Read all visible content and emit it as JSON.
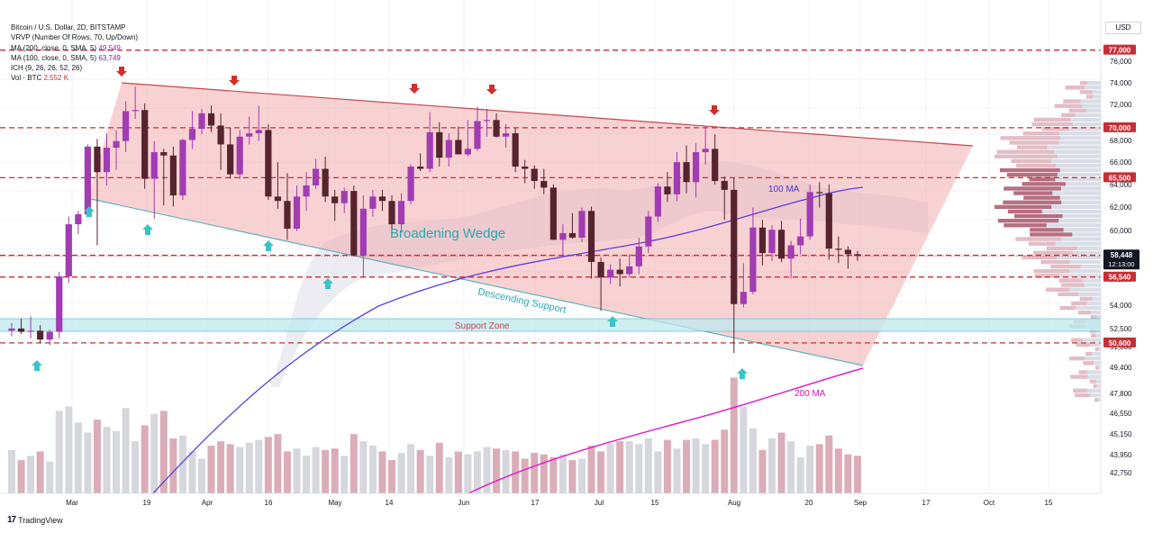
{
  "header": {
    "symbol": "Bitcoin / U.S. Dollar, 2D, BITSTAMP",
    "indicators": [
      {
        "name": "VRVP (Number Of Rows, 70, Up/Down)",
        "value": ""
      },
      {
        "name": "MA (200, close, 0, SMA, 5)",
        "value": "49,549"
      },
      {
        "name": "MA (100, close, 0, SMA, 5)",
        "value": "63,749"
      },
      {
        "name": "ICH (9, 26, 26, 52, 26)",
        "value": ""
      },
      {
        "name": "Vol · BTC",
        "value": "2.552 K"
      }
    ]
  },
  "currency": "USD",
  "branding": "TradingView",
  "chart_data": {
    "type": "candlestick",
    "y_axis_ticks": [
      "76,000",
      "74,000",
      "72,000",
      "70,000",
      "68,000",
      "66,000",
      "64,000",
      "62,000",
      "60,000",
      "58,000",
      "56,000",
      "54,000",
      "52,500",
      "51,000",
      "49,400",
      "47,800",
      "46,550",
      "45,150",
      "43,950",
      "42,750"
    ],
    "x_axis_ticks": [
      "Mar",
      "19",
      "Apr",
      "16",
      "May",
      "14",
      "Jun",
      "17",
      "Jul",
      "15",
      "Aug",
      "20",
      "Sep",
      "17",
      "Oct",
      "15"
    ],
    "price_levels": [
      {
        "label": "77,000",
        "price": 77000
      },
      {
        "label": "70,000",
        "price": 70000
      },
      {
        "label": "65,500",
        "price": 65500
      },
      {
        "label": "58,500",
        "price": 58500
      },
      {
        "label": "56,540",
        "price": 56540
      },
      {
        "label": "50,600",
        "price": 50600
      }
    ],
    "current_price": {
      "label": "58,448",
      "countdown": "12:13:00"
    },
    "annotations": {
      "pattern": "Broadening Wedge",
      "support_line": "Descending Support",
      "support_zone": "Support Zone",
      "ma100": "100 MA",
      "ma200": "200 MA"
    },
    "candles": [
      {
        "o": 51700,
        "h": 52400,
        "l": 51200,
        "c": 51900
      },
      {
        "o": 51900,
        "h": 52800,
        "l": 51400,
        "c": 51600
      },
      {
        "o": 51600,
        "h": 53000,
        "l": 51000,
        "c": 51700
      },
      {
        "o": 51700,
        "h": 52200,
        "l": 50600,
        "c": 50900
      },
      {
        "o": 50900,
        "h": 51800,
        "l": 50400,
        "c": 51600
      },
      {
        "o": 51600,
        "h": 57000,
        "l": 51000,
        "c": 56600
      },
      {
        "o": 56600,
        "h": 62000,
        "l": 56000,
        "c": 61300
      },
      {
        "o": 61300,
        "h": 62500,
        "l": 60400,
        "c": 62200
      },
      {
        "o": 62200,
        "h": 68500,
        "l": 62000,
        "c": 68300
      },
      {
        "o": 68300,
        "h": 69000,
        "l": 59400,
        "c": 66000
      },
      {
        "o": 66000,
        "h": 69500,
        "l": 64800,
        "c": 68200
      },
      {
        "o": 68200,
        "h": 69800,
        "l": 66200,
        "c": 68800
      },
      {
        "o": 68800,
        "h": 72400,
        "l": 67800,
        "c": 71500
      },
      {
        "o": 71500,
        "h": 73700,
        "l": 70800,
        "c": 71600
      },
      {
        "o": 71600,
        "h": 72200,
        "l": 64500,
        "c": 65400
      },
      {
        "o": 65400,
        "h": 68800,
        "l": 61800,
        "c": 67800
      },
      {
        "o": 67800,
        "h": 68100,
        "l": 63000,
        "c": 67500
      },
      {
        "o": 67500,
        "h": 68300,
        "l": 62900,
        "c": 63900
      },
      {
        "o": 63900,
        "h": 69000,
        "l": 63500,
        "c": 68900
      },
      {
        "o": 68900,
        "h": 71500,
        "l": 68100,
        "c": 69900
      },
      {
        "o": 69900,
        "h": 71700,
        "l": 69400,
        "c": 71300
      },
      {
        "o": 71300,
        "h": 72000,
        "l": 69600,
        "c": 70200
      },
      {
        "o": 70200,
        "h": 71300,
        "l": 66200,
        "c": 68500
      },
      {
        "o": 68500,
        "h": 70000,
        "l": 65400,
        "c": 65800
      },
      {
        "o": 65800,
        "h": 69800,
        "l": 65400,
        "c": 69200
      },
      {
        "o": 69200,
        "h": 71000,
        "l": 68500,
        "c": 69500
      },
      {
        "o": 69500,
        "h": 72000,
        "l": 68800,
        "c": 69800
      },
      {
        "o": 69800,
        "h": 70300,
        "l": 63500,
        "c": 63800
      },
      {
        "o": 63800,
        "h": 66900,
        "l": 62700,
        "c": 63400
      },
      {
        "o": 63400,
        "h": 65900,
        "l": 59900,
        "c": 60900
      },
      {
        "o": 60900,
        "h": 64800,
        "l": 60700,
        "c": 63800
      },
      {
        "o": 63800,
        "h": 66000,
        "l": 62500,
        "c": 64800
      },
      {
        "o": 64800,
        "h": 67200,
        "l": 64500,
        "c": 66300
      },
      {
        "o": 66300,
        "h": 67400,
        "l": 63300,
        "c": 63800
      },
      {
        "o": 63800,
        "h": 64400,
        "l": 61600,
        "c": 63200
      },
      {
        "o": 63200,
        "h": 64600,
        "l": 62300,
        "c": 64300
      },
      {
        "o": 64300,
        "h": 64800,
        "l": 58400,
        "c": 58500
      },
      {
        "o": 58500,
        "h": 63900,
        "l": 56600,
        "c": 62700
      },
      {
        "o": 62700,
        "h": 64400,
        "l": 62000,
        "c": 63800
      },
      {
        "o": 63800,
        "h": 64400,
        "l": 62500,
        "c": 63400
      },
      {
        "o": 63400,
        "h": 63900,
        "l": 60800,
        "c": 61300
      },
      {
        "o": 61300,
        "h": 64100,
        "l": 60600,
        "c": 63400
      },
      {
        "o": 63400,
        "h": 66700,
        "l": 63100,
        "c": 66500
      },
      {
        "o": 66500,
        "h": 67700,
        "l": 66100,
        "c": 66300
      },
      {
        "o": 66300,
        "h": 71400,
        "l": 66000,
        "c": 69600
      },
      {
        "o": 69600,
        "h": 70500,
        "l": 66500,
        "c": 67300
      },
      {
        "o": 67300,
        "h": 69500,
        "l": 66500,
        "c": 68900
      },
      {
        "o": 68900,
        "h": 70100,
        "l": 67800,
        "c": 67600
      },
      {
        "o": 67600,
        "h": 70700,
        "l": 67400,
        "c": 68100
      },
      {
        "o": 68100,
        "h": 71900,
        "l": 67900,
        "c": 70600
      },
      {
        "o": 70600,
        "h": 71700,
        "l": 69200,
        "c": 70700
      },
      {
        "o": 70700,
        "h": 71300,
        "l": 69100,
        "c": 69200
      },
      {
        "o": 69200,
        "h": 70300,
        "l": 68200,
        "c": 69500
      },
      {
        "o": 69500,
        "h": 70000,
        "l": 66000,
        "c": 66500
      },
      {
        "o": 66500,
        "h": 67100,
        "l": 65000,
        "c": 66300
      },
      {
        "o": 66300,
        "h": 66600,
        "l": 64500,
        "c": 65200
      },
      {
        "o": 65200,
        "h": 66300,
        "l": 64000,
        "c": 64600
      },
      {
        "o": 64600,
        "h": 64900,
        "l": 59900,
        "c": 59900
      },
      {
        "o": 59900,
        "h": 61300,
        "l": 58500,
        "c": 60500
      },
      {
        "o": 60500,
        "h": 62300,
        "l": 60000,
        "c": 60100
      },
      {
        "o": 60100,
        "h": 62800,
        "l": 59700,
        "c": 62500
      },
      {
        "o": 62500,
        "h": 62900,
        "l": 56400,
        "c": 57900
      },
      {
        "o": 57900,
        "h": 58300,
        "l": 53500,
        "c": 56500
      },
      {
        "o": 56500,
        "h": 57700,
        "l": 55900,
        "c": 57200
      },
      {
        "o": 57200,
        "h": 58200,
        "l": 55700,
        "c": 56800
      },
      {
        "o": 56800,
        "h": 58600,
        "l": 56500,
        "c": 57500
      },
      {
        "o": 57500,
        "h": 60100,
        "l": 56800,
        "c": 59300
      },
      {
        "o": 59300,
        "h": 62500,
        "l": 58700,
        "c": 62000
      },
      {
        "o": 62000,
        "h": 65000,
        "l": 61500,
        "c": 64700
      },
      {
        "o": 64700,
        "h": 66000,
        "l": 63300,
        "c": 64000
      },
      {
        "o": 64000,
        "h": 67800,
        "l": 63400,
        "c": 66900
      },
      {
        "o": 66900,
        "h": 68400,
        "l": 64100,
        "c": 65100
      },
      {
        "o": 65100,
        "h": 68600,
        "l": 63700,
        "c": 67800
      },
      {
        "o": 67800,
        "h": 70100,
        "l": 66700,
        "c": 68100
      },
      {
        "o": 68100,
        "h": 69400,
        "l": 64900,
        "c": 65200
      },
      {
        "o": 65200,
        "h": 65600,
        "l": 61700,
        "c": 64400
      },
      {
        "o": 64400,
        "h": 65500,
        "l": 49700,
        "c": 54100
      },
      {
        "o": 54100,
        "h": 57800,
        "l": 53800,
        "c": 55200
      },
      {
        "o": 55200,
        "h": 62800,
        "l": 55000,
        "c": 61000
      },
      {
        "o": 61000,
        "h": 61700,
        "l": 57600,
        "c": 58700
      },
      {
        "o": 58700,
        "h": 61200,
        "l": 58000,
        "c": 60800
      },
      {
        "o": 60800,
        "h": 61600,
        "l": 57900,
        "c": 58200
      },
      {
        "o": 58200,
        "h": 59800,
        "l": 56400,
        "c": 59400
      },
      {
        "o": 59400,
        "h": 61800,
        "l": 58600,
        "c": 60200
      },
      {
        "o": 60200,
        "h": 64900,
        "l": 59900,
        "c": 64200
      },
      {
        "o": 64200,
        "h": 65100,
        "l": 62800,
        "c": 64100
      },
      {
        "o": 64100,
        "h": 64900,
        "l": 58100,
        "c": 59100
      },
      {
        "o": 59100,
        "h": 60200,
        "l": 57800,
        "c": 59000
      },
      {
        "o": 59000,
        "h": 59300,
        "l": 57300,
        "c": 58600
      },
      {
        "o": 58600,
        "h": 58900,
        "l": 58000,
        "c": 58448
      }
    ],
    "volume": [
      3.0,
      2.3,
      2.6,
      2.9,
      2.2,
      5.7,
      6.0,
      4.9,
      4.2,
      5.1,
      4.6,
      4.3,
      5.9,
      3.6,
      4.7,
      5.5,
      5.7,
      3.8,
      4.0,
      2.9,
      2.4,
      3.3,
      3.6,
      3.4,
      3.2,
      3.5,
      3.7,
      3.9,
      4.1,
      2.9,
      3.1,
      2.6,
      3.2,
      3.0,
      3.1,
      2.6,
      4.1,
      3.6,
      3.3,
      2.9,
      2.3,
      2.8,
      3.4,
      3.0,
      2.6,
      3.5,
      2.5,
      2.9,
      2.7,
      2.9,
      3.2,
      3.1,
      3.0,
      2.9,
      2.4,
      2.8,
      2.7,
      2.5,
      2.7,
      2.3,
      2.4,
      3.3,
      2.9,
      3.4,
      3.6,
      3.6,
      3.4,
      3.8,
      2.9,
      3.7,
      3.1,
      3.7,
      3.8,
      3.4,
      3.7,
      4.4,
      8.0,
      6.0,
      4.5,
      3.0,
      3.8,
      4.2,
      3.6,
      2.5,
      3.3,
      3.4,
      4.0,
      3.1,
      2.7,
      2.6
    ]
  }
}
